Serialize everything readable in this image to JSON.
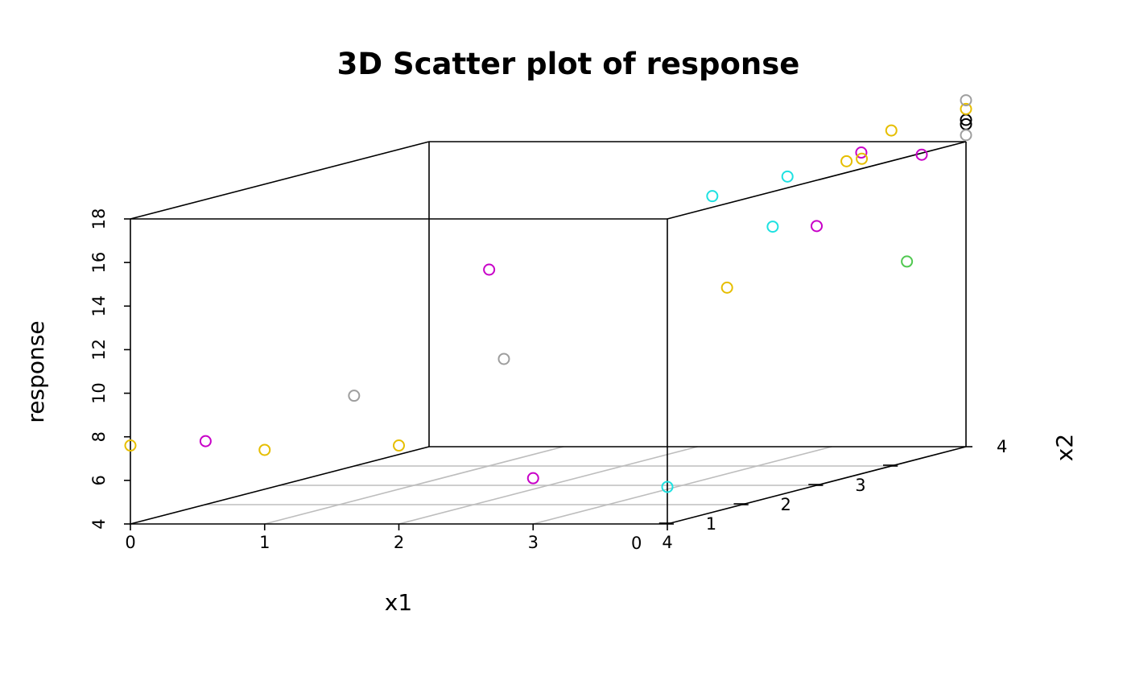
{
  "chart_data": {
    "type": "scatter",
    "title": "3D Scatter plot of response",
    "xlabel": "x1",
    "ylabel": "x2",
    "zlabel": "response",
    "xlim": [
      0,
      4
    ],
    "ylim": [
      0,
      4
    ],
    "zlim": [
      4,
      18
    ],
    "x_ticks": [
      "0",
      "1",
      "2",
      "3",
      "4"
    ],
    "y_ticks": [
      "0",
      "1",
      "2",
      "3",
      "4"
    ],
    "z_ticks": [
      "4",
      "6",
      "8",
      "10",
      "12",
      "14",
      "16",
      "18"
    ],
    "grid": "x1-x2 floor plane",
    "points": [
      {
        "x": 0,
        "y": 0,
        "z": 7.6,
        "color": "#E6BE00"
      },
      {
        "x": 0.56,
        "y": 0,
        "z": 7.8,
        "color": "#C800C8"
      },
      {
        "x": 1,
        "y": 0,
        "z": 7.4,
        "color": "#E6BE00"
      },
      {
        "x": 2,
        "y": 0,
        "z": 7.6,
        "color": "#E6BE00"
      },
      {
        "x": 1.11,
        "y": 1,
        "z": 9.0,
        "color": "#9E9E9E"
      },
      {
        "x": 1.67,
        "y": 2,
        "z": 9.8,
        "color": "#9E9E9E"
      },
      {
        "x": 1.56,
        "y": 2,
        "z": 13.9,
        "color": "#C800C8"
      },
      {
        "x": 2.22,
        "y": 4,
        "z": 11.3,
        "color": "#E6BE00"
      },
      {
        "x": 2.11,
        "y": 4,
        "z": 15.5,
        "color": "#1EE1E1"
      },
      {
        "x": 3,
        "y": 0,
        "z": 6.1,
        "color": "#C800C8"
      },
      {
        "x": 4,
        "y": 0,
        "z": 5.7,
        "color": "#1EE1E1"
      },
      {
        "x": 2.56,
        "y": 4,
        "z": 14.1,
        "color": "#1EE1E1"
      },
      {
        "x": 2.67,
        "y": 4,
        "z": 16.4,
        "color": "#1EE1E1"
      },
      {
        "x": 3.11,
        "y": 4,
        "z": 17.1,
        "color": "#E6BE00"
      },
      {
        "x": 3.22,
        "y": 4,
        "z": 17.5,
        "color": "#C800C8"
      },
      {
        "x": 3.67,
        "y": 4,
        "z": 17.4,
        "color": "#C800C8"
      },
      {
        "x": 3.56,
        "y": 4,
        "z": 12.5,
        "color": "#50C850"
      },
      {
        "x": 3.78,
        "y": 3,
        "z": 18.1,
        "color": "#E6BE00"
      },
      {
        "x": 4,
        "y": 3,
        "z": 19.4,
        "color": "#E6BE00"
      },
      {
        "x": 4,
        "y": 4,
        "z": 18.8,
        "color": "#000000"
      },
      {
        "x": 4,
        "y": 2,
        "z": 15.9,
        "color": "#C800C8"
      },
      {
        "x": 4,
        "y": 4,
        "z": 19.0,
        "color": "#000000"
      },
      {
        "x": 4,
        "y": 4,
        "z": 18.3,
        "color": "#9E9E9E"
      },
      {
        "x": 4,
        "y": 4,
        "z": 19.5,
        "color": "#E6BE00"
      },
      {
        "x": 4,
        "y": 4,
        "z": 19.9,
        "color": "#9E9E9E"
      }
    ]
  }
}
